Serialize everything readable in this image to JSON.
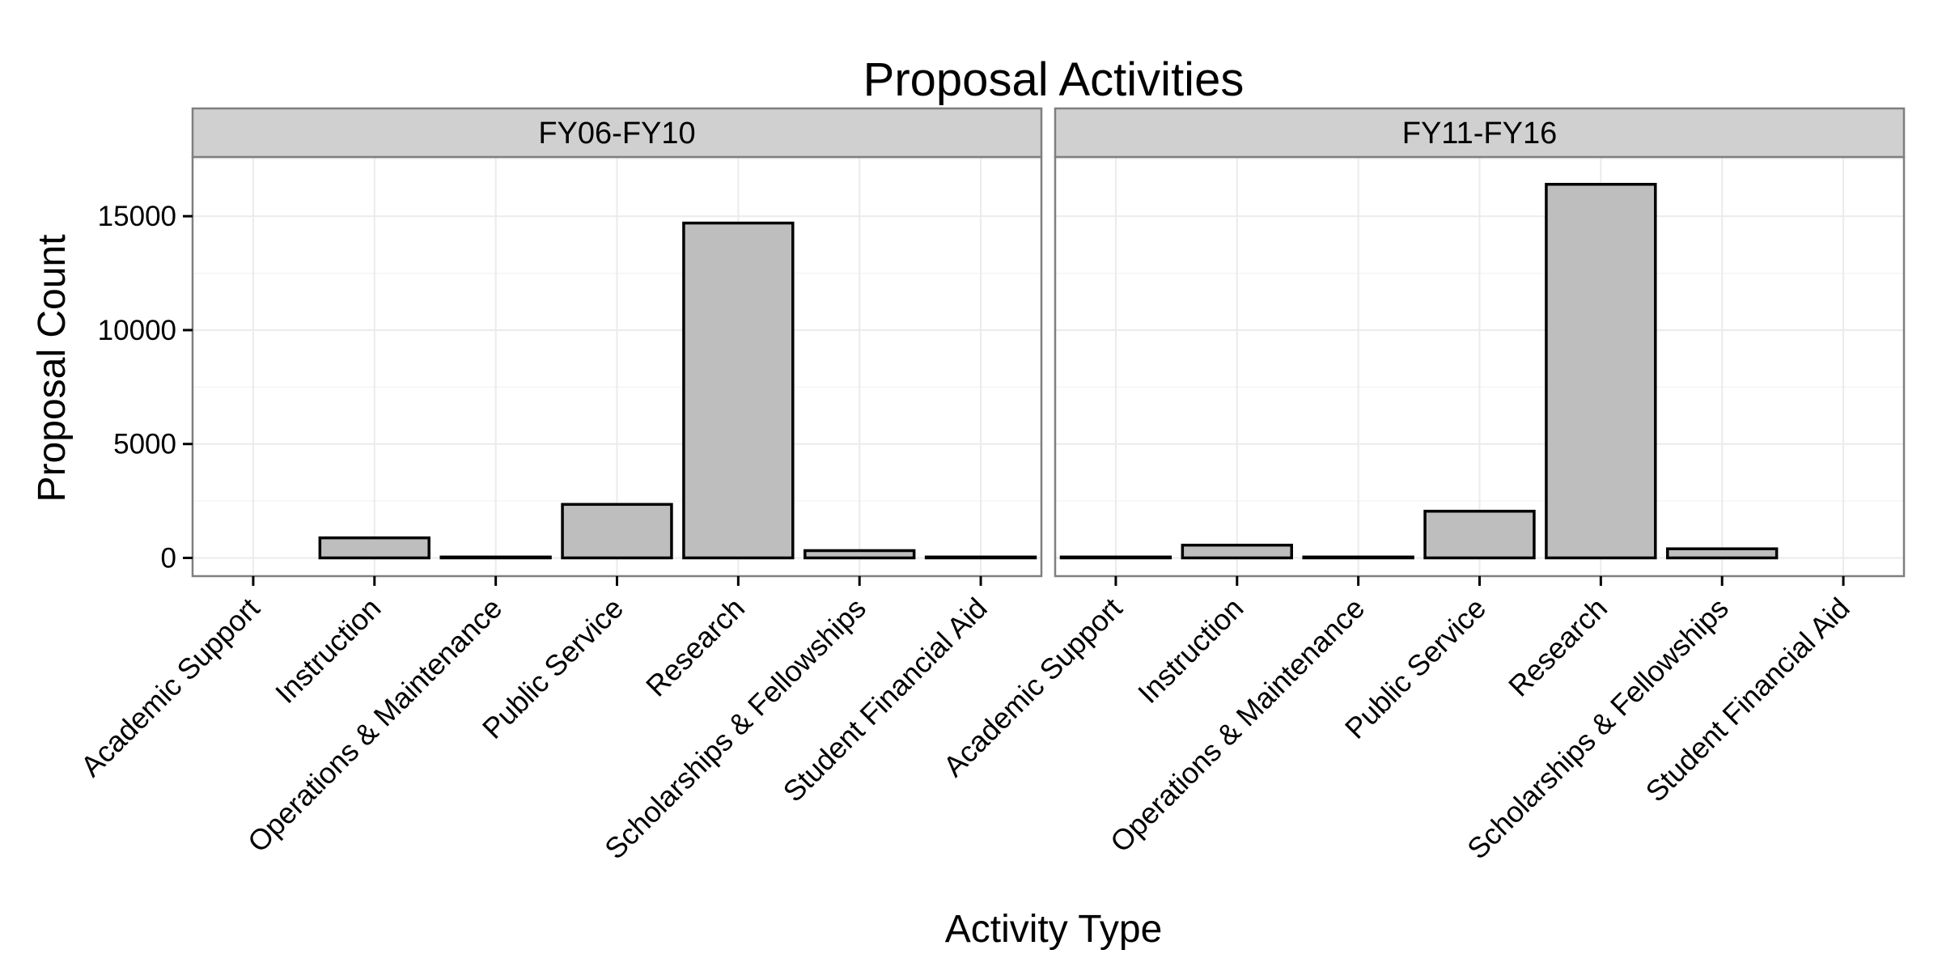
{
  "chart_data": {
    "type": "bar",
    "title": "Proposal Activities",
    "xlabel": "Activity Type",
    "ylabel": "Proposal Count",
    "ylim": [
      -800,
      17600
    ],
    "yticks": [
      0,
      5000,
      10000,
      15000
    ],
    "y_tick_labels": [
      "0",
      "5000",
      "10000",
      "15000"
    ],
    "grid": true,
    "legend": "none",
    "colors": {
      "bar_fill": "#bebebe",
      "bar_stroke": "#000000",
      "strip_fill": "#d0d0d0",
      "panel_border": "#7f7f7f",
      "grid": "#ebebeb"
    },
    "categories": [
      "Academic Support",
      "Instruction",
      "Operations & Maintenance",
      "Public Service",
      "Research",
      "Scholarships & Fellowships",
      "Student Financial Aid"
    ],
    "panels": [
      {
        "name": "FY06-FY10",
        "values": [
          null,
          880,
          40,
          2350,
          14700,
          320,
          40
        ]
      },
      {
        "name": "FY11-FY16",
        "values": [
          40,
          560,
          40,
          2050,
          16400,
          400,
          null
        ]
      }
    ]
  }
}
